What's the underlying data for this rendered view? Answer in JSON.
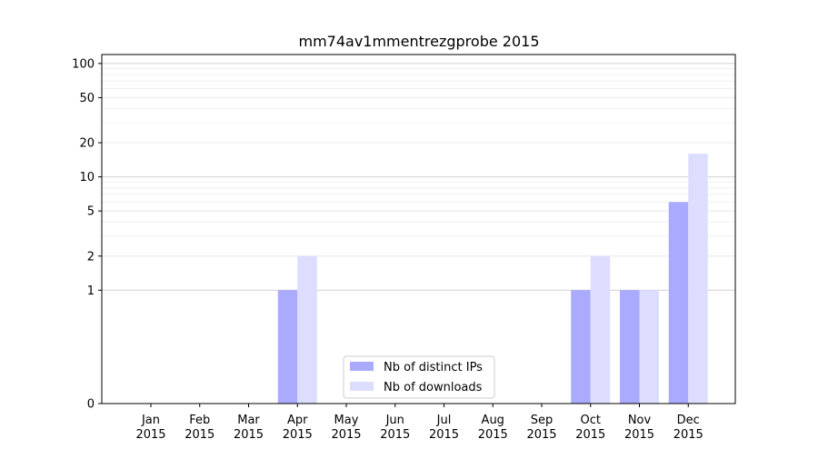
{
  "chart_data": {
    "type": "bar",
    "title": "mm74av1mmentrezgprobe 2015",
    "xlabel": "",
    "ylabel": "",
    "y_scale": "symlog",
    "ylim": [
      0,
      120
    ],
    "y_ticks": [
      0,
      1,
      2,
      5,
      10,
      20,
      50,
      100
    ],
    "y_tick_labels": [
      "0",
      "1",
      "2",
      "5",
      "10",
      "20",
      "50",
      "100"
    ],
    "categories": [
      {
        "month": "Jan",
        "year": "2015"
      },
      {
        "month": "Feb",
        "year": "2015"
      },
      {
        "month": "Mar",
        "year": "2015"
      },
      {
        "month": "Apr",
        "year": "2015"
      },
      {
        "month": "May",
        "year": "2015"
      },
      {
        "month": "Jun",
        "year": "2015"
      },
      {
        "month": "Jul",
        "year": "2015"
      },
      {
        "month": "Aug",
        "year": "2015"
      },
      {
        "month": "Sep",
        "year": "2015"
      },
      {
        "month": "Oct",
        "year": "2015"
      },
      {
        "month": "Nov",
        "year": "2015"
      },
      {
        "month": "Dec",
        "year": "2015"
      }
    ],
    "series": [
      {
        "name": "Nb of distinct IPs",
        "color": "#aaaaff",
        "values": [
          0,
          0,
          0,
          1,
          0,
          0,
          0,
          0,
          0,
          1,
          1,
          6
        ]
      },
      {
        "name": "Nb of downloads",
        "color": "#ddddff",
        "values": [
          0,
          0,
          0,
          2,
          0,
          0,
          0,
          0,
          0,
          2,
          1,
          16
        ]
      }
    ],
    "grid": "horizontal",
    "legend_position": "lower-center"
  }
}
